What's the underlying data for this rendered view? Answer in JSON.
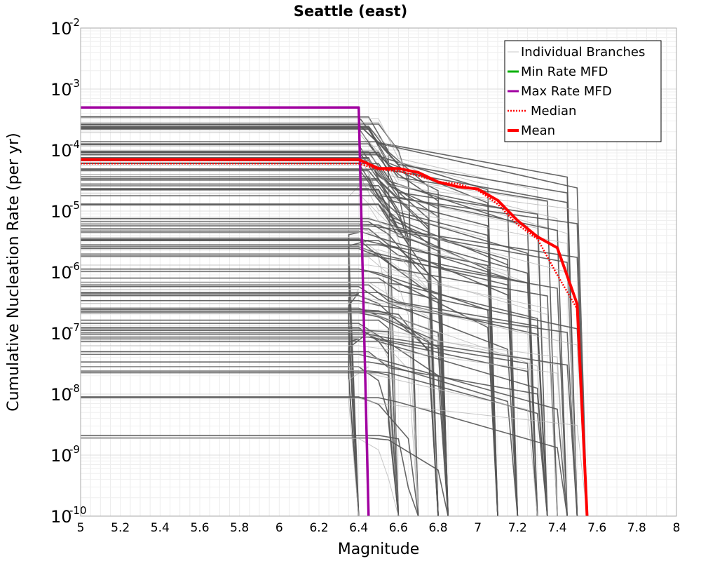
{
  "chart_data": {
    "type": "line",
    "title": "Seattle (east)",
    "xlabel": "Magnitude",
    "ylabel": "Cumulative Nucleation Rate (per yr)",
    "xlim": [
      5,
      8
    ],
    "ylim": [
      1e-10,
      0.01
    ],
    "yscale": "log",
    "grid": true,
    "legend_position": "top-right",
    "x_ticks": [
      "5",
      "5.2",
      "5.4",
      "5.6",
      "5.8",
      "6",
      "6.2",
      "6.4",
      "6.6",
      "6.8",
      "7",
      "7.2",
      "7.4",
      "7.6",
      "7.8",
      "8"
    ],
    "y_ticks": [
      {
        "base": "10",
        "exp": "-2",
        "value": 0.01
      },
      {
        "base": "10",
        "exp": "-3",
        "value": 0.001
      },
      {
        "base": "10",
        "exp": "-4",
        "value": 0.0001
      },
      {
        "base": "10",
        "exp": "-5",
        "value": 1e-05
      },
      {
        "base": "10",
        "exp": "-6",
        "value": 1e-06
      },
      {
        "base": "10",
        "exp": "-7",
        "value": 1e-07
      },
      {
        "base": "10",
        "exp": "-8",
        "value": 1e-08
      },
      {
        "base": "10",
        "exp": "-9",
        "value": 1e-09
      },
      {
        "base": "10",
        "exp": "-10",
        "value": 1e-10
      }
    ],
    "series": [
      {
        "name": "Individual Branches",
        "color": "#555555",
        "style": "thin-solid",
        "levels": [
          0.00035,
          0.00029,
          0.00025,
          0.00022,
          0.0002,
          0.00012,
          0.00011,
          0.0001,
          9.5e-05,
          8.5e-05,
          7e-05,
          6e-05,
          5e-05,
          4e-05,
          3.5e-05,
          3e-05,
          2.5e-05,
          2e-05,
          1.2e-05,
          7e-06,
          6e-06,
          5e-06,
          4e-06,
          3.5e-06,
          3e-06,
          2.5e-06,
          2e-06,
          1.2e-06,
          7e-07,
          6e-07,
          5e-07,
          4e-07,
          3e-07,
          2.5e-07,
          2e-07,
          1.5e-07,
          1.3e-07,
          1.1e-07,
          9e-08,
          7e-08,
          5e-08,
          3e-08,
          2.5e-08,
          8e-09,
          2e-09
        ],
        "cutoff_magnitudes": [
          6.4,
          6.6,
          6.7,
          6.8,
          6.85,
          7.1,
          7.2,
          7.3,
          7.35,
          7.4,
          7.45,
          7.5,
          7.55
        ]
      },
      {
        "name": "Min Rate MFD",
        "color": "#00b000",
        "style": "solid",
        "x": [],
        "y": []
      },
      {
        "name": "Max Rate MFD",
        "color": "#a000a0",
        "style": "solid",
        "x": [
          5,
          6.4,
          6.45
        ],
        "y": [
          0.0005,
          0.0005,
          1e-10
        ]
      },
      {
        "name": "Median",
        "color": "#ff0000",
        "style": "dotted",
        "x": [
          5,
          6.4,
          6.5,
          6.6,
          6.7,
          6.8,
          6.9,
          7.0,
          7.1,
          7.2,
          7.3,
          7.4,
          7.5,
          7.55
        ],
        "y": [
          6e-05,
          6e-05,
          4.8e-05,
          4.5e-05,
          3.8e-05,
          3e-05,
          2.8e-05,
          2.2e-05,
          1.3e-05,
          6e-06,
          3.5e-06,
          9e-07,
          2.5e-07,
          1e-10
        ]
      },
      {
        "name": "Mean",
        "color": "#ff0000",
        "style": "thick-solid",
        "x": [
          5,
          6.4,
          6.5,
          6.6,
          6.7,
          6.8,
          6.9,
          7.0,
          7.1,
          7.2,
          7.3,
          7.4,
          7.5,
          7.55
        ],
        "y": [
          7e-05,
          7e-05,
          5e-05,
          5e-05,
          4.3e-05,
          3e-05,
          2.5e-05,
          2.3e-05,
          1.5e-05,
          7e-06,
          3.8e-06,
          2.5e-06,
          3e-07,
          1e-10
        ]
      }
    ]
  }
}
